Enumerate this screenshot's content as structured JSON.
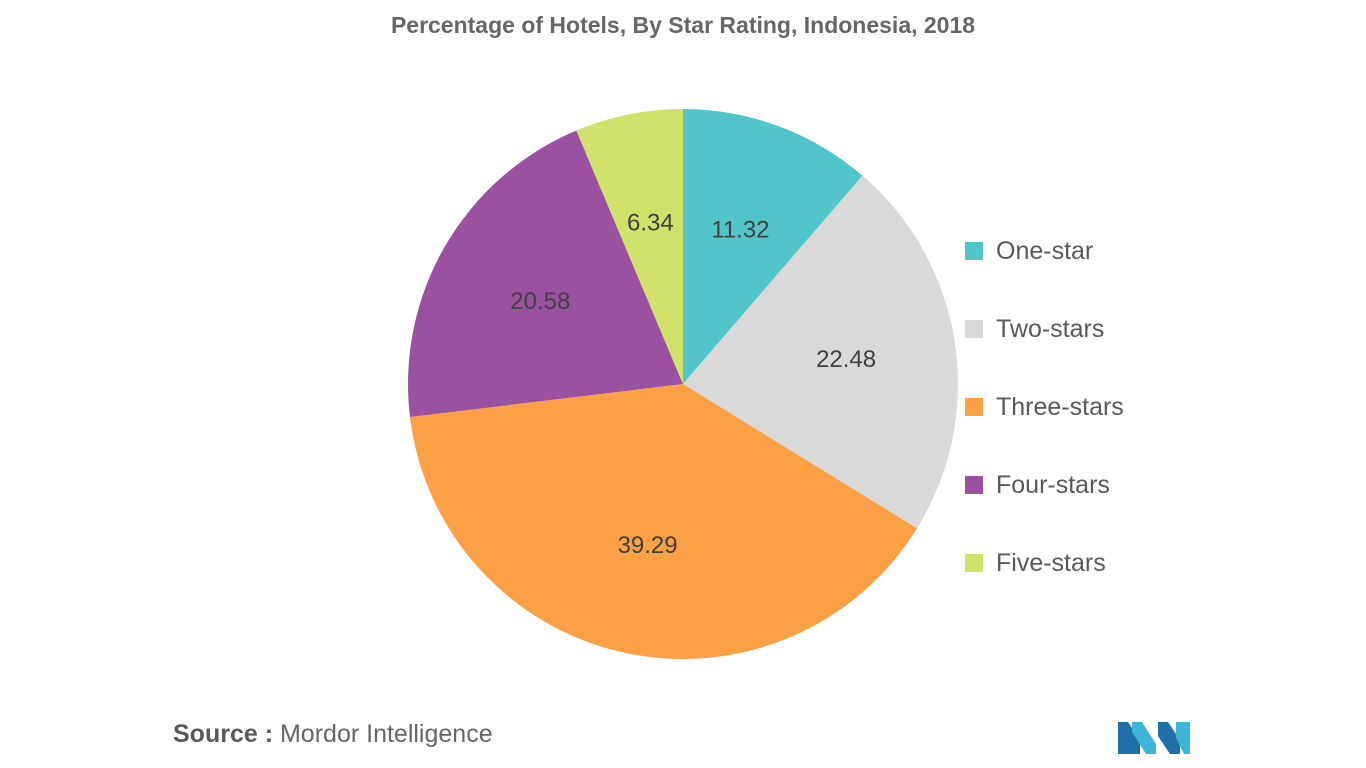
{
  "title": "Percentage of Hotels, By Star Rating, Indonesia, 2018",
  "chart_data": {
    "type": "pie",
    "title": "Percentage of Hotels, By Star Rating, Indonesia, 2018",
    "categories": [
      "One-star",
      "Two-stars",
      "Three-stars",
      "Four-stars",
      "Five-stars"
    ],
    "values": [
      11.32,
      22.48,
      39.29,
      20.58,
      6.34
    ],
    "colors": [
      "#52C5CB",
      "#D9D9D9",
      "#FCA046",
      "#9A51A0",
      "#D1E26B"
    ],
    "legend_position": "right",
    "start": "12 o'clock",
    "direction": "clockwise"
  },
  "legend": {
    "items": [
      {
        "label": "One-star",
        "color": "#52C5CB"
      },
      {
        "label": "Two-stars",
        "color": "#D9D9D9"
      },
      {
        "label": "Three-stars",
        "color": "#FCA046"
      },
      {
        "label": "Four-stars",
        "color": "#9A51A0"
      },
      {
        "label": "Five-stars",
        "color": "#D1E26B"
      }
    ]
  },
  "source": {
    "prefix": "Source :",
    "text": "Mordor Intelligence"
  },
  "logo": {
    "icon": "mordor-intelligence-logo-icon",
    "colors": [
      "#1F6FA8",
      "#3DB5D6"
    ]
  }
}
